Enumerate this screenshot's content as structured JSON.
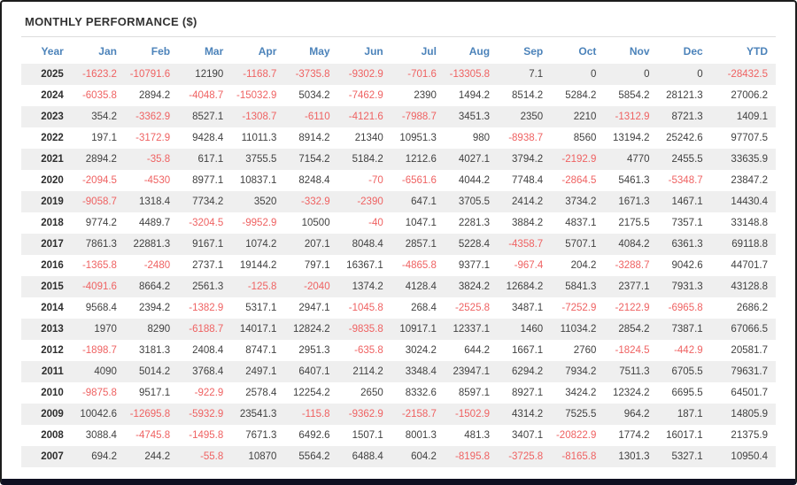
{
  "widget": {
    "title": "MONTHLY PERFORMANCE ($)"
  },
  "colors": {
    "header_text": "#4c83ba",
    "negative_value": "#ef6262",
    "positive_value": "#414141",
    "stripe_row": "#efefef",
    "title_text": "#333333"
  },
  "chart_data": {
    "type": "table",
    "title": "MONTHLY PERFORMANCE ($)",
    "columns": [
      "Year",
      "Jan",
      "Feb",
      "Mar",
      "Apr",
      "May",
      "Jun",
      "Jul",
      "Aug",
      "Sep",
      "Oct",
      "Nov",
      "Dec",
      "YTD"
    ],
    "rows": [
      {
        "year": "2025",
        "values": [
          "-1623.2",
          "-10791.6",
          "12190",
          "-1168.7",
          "-3735.8",
          "-9302.9",
          "-701.6",
          "-13305.8",
          "7.1",
          "0",
          "0",
          "0",
          "-28432.5"
        ]
      },
      {
        "year": "2024",
        "values": [
          "-6035.8",
          "2894.2",
          "-4048.7",
          "-15032.9",
          "5034.2",
          "-7462.9",
          "2390",
          "1494.2",
          "8514.2",
          "5284.2",
          "5854.2",
          "28121.3",
          "27006.2"
        ]
      },
      {
        "year": "2023",
        "values": [
          "354.2",
          "-3362.9",
          "8527.1",
          "-1308.7",
          "-6110",
          "-4121.6",
          "-7988.7",
          "3451.3",
          "2350",
          "2210",
          "-1312.9",
          "8721.3",
          "1409.1"
        ]
      },
      {
        "year": "2022",
        "values": [
          "197.1",
          "-3172.9",
          "9428.4",
          "11011.3",
          "8914.2",
          "21340",
          "10951.3",
          "980",
          "-8938.7",
          "8560",
          "13194.2",
          "25242.6",
          "97707.5"
        ]
      },
      {
        "year": "2021",
        "values": [
          "2894.2",
          "-35.8",
          "617.1",
          "3755.5",
          "7154.2",
          "5184.2",
          "1212.6",
          "4027.1",
          "3794.2",
          "-2192.9",
          "4770",
          "2455.5",
          "33635.9"
        ]
      },
      {
        "year": "2020",
        "values": [
          "-2094.5",
          "-4530",
          "8977.1",
          "10837.1",
          "8248.4",
          "-70",
          "-6561.6",
          "4044.2",
          "7748.4",
          "-2864.5",
          "5461.3",
          "-5348.7",
          "23847.2"
        ]
      },
      {
        "year": "2019",
        "values": [
          "-9058.7",
          "1318.4",
          "7734.2",
          "3520",
          "-332.9",
          "-2390",
          "647.1",
          "3705.5",
          "2414.2",
          "3734.2",
          "1671.3",
          "1467.1",
          "14430.4"
        ]
      },
      {
        "year": "2018",
        "values": [
          "9774.2",
          "4489.7",
          "-3204.5",
          "-9952.9",
          "10500",
          "-40",
          "1047.1",
          "2281.3",
          "3884.2",
          "4837.1",
          "2175.5",
          "7357.1",
          "33148.8"
        ]
      },
      {
        "year": "2017",
        "values": [
          "7861.3",
          "22881.3",
          "9167.1",
          "1074.2",
          "207.1",
          "8048.4",
          "2857.1",
          "5228.4",
          "-4358.7",
          "5707.1",
          "4084.2",
          "6361.3",
          "69118.8"
        ]
      },
      {
        "year": "2016",
        "values": [
          "-1365.8",
          "-2480",
          "2737.1",
          "19144.2",
          "797.1",
          "16367.1",
          "-4865.8",
          "9377.1",
          "-967.4",
          "204.2",
          "-3288.7",
          "9042.6",
          "44701.7"
        ]
      },
      {
        "year": "2015",
        "values": [
          "-4091.6",
          "8664.2",
          "2561.3",
          "-125.8",
          "-2040",
          "1374.2",
          "4128.4",
          "3824.2",
          "12684.2",
          "5841.3",
          "2377.1",
          "7931.3",
          "43128.8"
        ]
      },
      {
        "year": "2014",
        "values": [
          "9568.4",
          "2394.2",
          "-1382.9",
          "5317.1",
          "2947.1",
          "-1045.8",
          "268.4",
          "-2525.8",
          "3487.1",
          "-7252.9",
          "-2122.9",
          "-6965.8",
          "2686.2"
        ]
      },
      {
        "year": "2013",
        "values": [
          "1970",
          "8290",
          "-6188.7",
          "14017.1",
          "12824.2",
          "-9835.8",
          "10917.1",
          "12337.1",
          "1460",
          "11034.2",
          "2854.2",
          "7387.1",
          "67066.5"
        ]
      },
      {
        "year": "2012",
        "values": [
          "-1898.7",
          "3181.3",
          "2408.4",
          "8747.1",
          "2951.3",
          "-635.8",
          "3024.2",
          "644.2",
          "1667.1",
          "2760",
          "-1824.5",
          "-442.9",
          "20581.7"
        ]
      },
      {
        "year": "2011",
        "values": [
          "4090",
          "5014.2",
          "3768.4",
          "2497.1",
          "6407.1",
          "2114.2",
          "3348.4",
          "23947.1",
          "6294.2",
          "7934.2",
          "7511.3",
          "6705.5",
          "79631.7"
        ]
      },
      {
        "year": "2010",
        "values": [
          "-9875.8",
          "9517.1",
          "-922.9",
          "2578.4",
          "12254.2",
          "2650",
          "8332.6",
          "8597.1",
          "8927.1",
          "3424.2",
          "12324.2",
          "6695.5",
          "64501.7"
        ]
      },
      {
        "year": "2009",
        "values": [
          "10042.6",
          "-12695.8",
          "-5932.9",
          "23541.3",
          "-115.8",
          "-9362.9",
          "-2158.7",
          "-1502.9",
          "4314.2",
          "7525.5",
          "964.2",
          "187.1",
          "14805.9"
        ]
      },
      {
        "year": "2008",
        "values": [
          "3088.4",
          "-4745.8",
          "-1495.8",
          "7671.3",
          "6492.6",
          "1507.1",
          "8001.3",
          "481.3",
          "3407.1",
          "-20822.9",
          "1774.2",
          "16017.1",
          "21375.9"
        ]
      },
      {
        "year": "2007",
        "values": [
          "694.2",
          "244.2",
          "-55.8",
          "10870",
          "5564.2",
          "6488.4",
          "604.2",
          "-8195.8",
          "-3725.8",
          "-8165.8",
          "1301.3",
          "5327.1",
          "10950.4"
        ]
      }
    ]
  }
}
